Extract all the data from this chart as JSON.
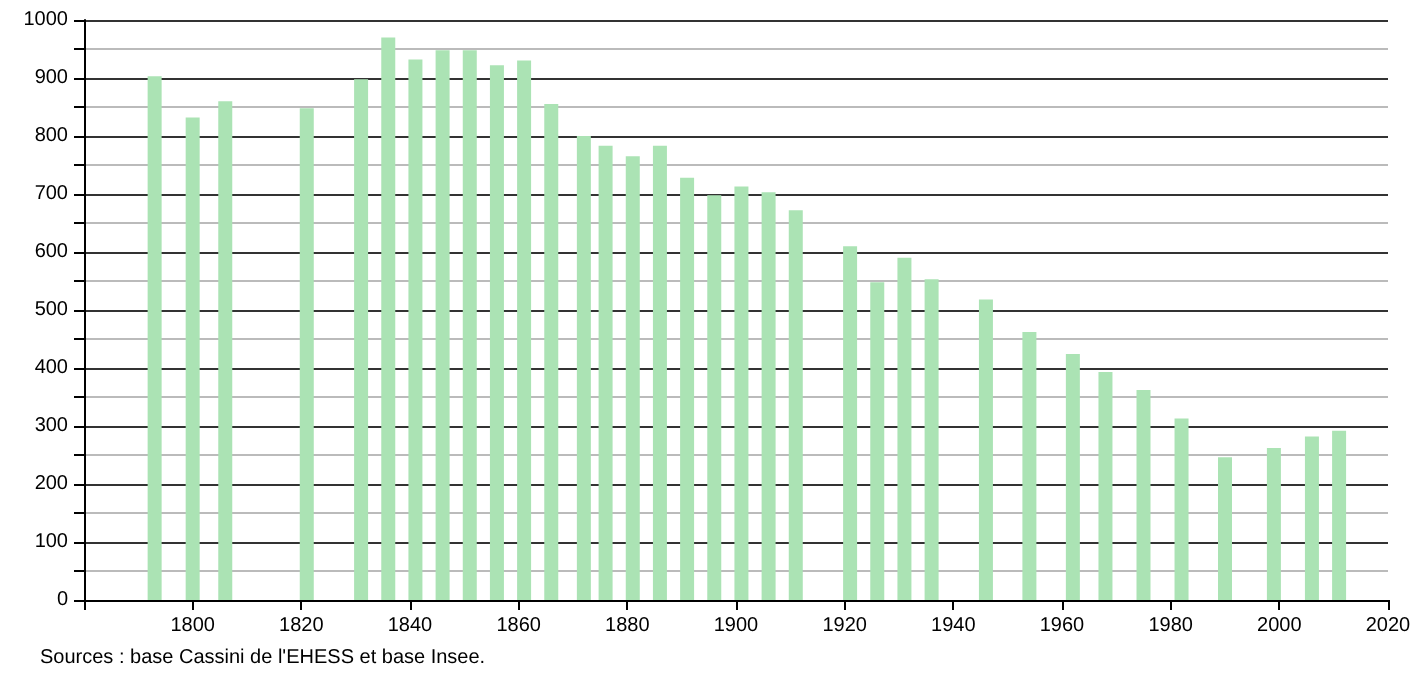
{
  "chart_data": {
    "type": "bar",
    "annotations": [
      "Sources : base Cassini de l'EHESS et base Insee."
    ],
    "x": [
      1793,
      1800,
      1806,
      1821,
      1831,
      1836,
      1841,
      1846,
      1851,
      1856,
      1861,
      1866,
      1872,
      1876,
      1881,
      1886,
      1891,
      1896,
      1901,
      1906,
      1911,
      1921,
      1926,
      1931,
      1936,
      1946,
      1954,
      1962,
      1968,
      1975,
      1982,
      1990,
      1999,
      2006,
      2011
    ],
    "values": [
      903,
      832,
      860,
      848,
      898,
      970,
      932,
      948,
      948,
      922,
      930,
      855,
      800,
      783,
      765,
      783,
      728,
      698,
      713,
      703,
      672,
      610,
      548,
      590,
      553,
      518,
      462,
      424,
      393,
      362,
      313,
      246,
      262,
      282,
      292
    ],
    "color": "#abe3b4",
    "xlim": [
      1780,
      2020
    ],
    "xticks": [
      {
        "value": 1780,
        "label": null
      },
      1800,
      1820,
      1840,
      1860,
      1880,
      1900,
      1920,
      1940,
      1960,
      1980,
      2000,
      2020
    ],
    "ylim": [
      0,
      1000
    ],
    "yticks": [
      0,
      {
        "value": 50,
        "label": null
      },
      100,
      {
        "value": 150,
        "label": null
      },
      200,
      {
        "value": 250,
        "label": null
      },
      300,
      {
        "value": 350,
        "label": null
      },
      400,
      {
        "value": 450,
        "label": null
      },
      500,
      {
        "value": 550,
        "label": null
      },
      600,
      {
        "value": 650,
        "label": null
      },
      700,
      {
        "value": 750,
        "label": null
      },
      800,
      {
        "value": 850,
        "label": null
      },
      900,
      {
        "value": 950,
        "label": null
      },
      1000
    ],
    "grid": "y"
  }
}
